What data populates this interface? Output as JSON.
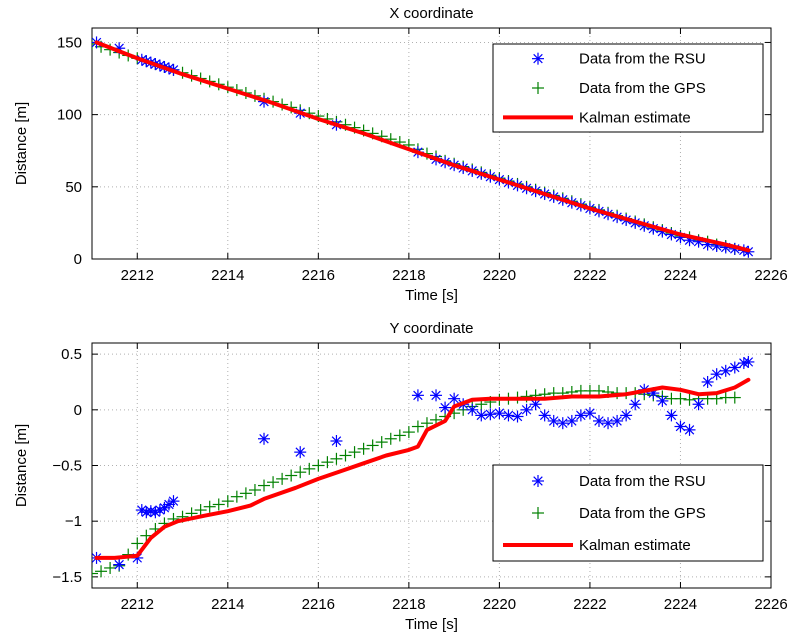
{
  "chart_data": [
    {
      "type": "line",
      "title": "X coordinate",
      "xlabel": "Time [s]",
      "ylabel": "Distance [m]",
      "xlim": [
        2211,
        2226
      ],
      "ylim": [
        0,
        160
      ],
      "xticks": [
        2212,
        2214,
        2216,
        2218,
        2220,
        2222,
        2224,
        2226
      ],
      "yticks": [
        0,
        50,
        100,
        150
      ],
      "grid": true,
      "legend_position": "top-right",
      "series": [
        {
          "name": "Data from the RSU",
          "marker": "asterisk",
          "color": "#0000ff",
          "x": [
            2211.1,
            2211.6,
            2212.1,
            2212.2,
            2212.3,
            2212.4,
            2212.5,
            2212.6,
            2212.7,
            2212.8,
            2214.8,
            2215.6,
            2216.4,
            2218.2,
            2218.6,
            2218.8,
            2219.0,
            2219.2,
            2219.4,
            2219.6,
            2219.8,
            2220.0,
            2220.2,
            2220.4,
            2220.6,
            2220.8,
            2221.0,
            2221.2,
            2221.4,
            2221.6,
            2221.8,
            2222.0,
            2222.2,
            2222.4,
            2222.6,
            2222.8,
            2223.0,
            2223.2,
            2223.4,
            2223.6,
            2223.8,
            2224.0,
            2224.2,
            2224.4,
            2224.6,
            2224.8,
            2225.0,
            2225.2,
            2225.4,
            2225.5
          ],
          "y": [
            150,
            146,
            138,
            137,
            136,
            135,
            134,
            133,
            132,
            131,
            109,
            101,
            93,
            74,
            69,
            67,
            65,
            63,
            61,
            59,
            57,
            55,
            53,
            51,
            49,
            47,
            45,
            43,
            41,
            39,
            37,
            35,
            33,
            31,
            29,
            27,
            25,
            23,
            21,
            19,
            17,
            15,
            13,
            12,
            10,
            9,
            8,
            7,
            6,
            5
          ]
        },
        {
          "name": "Data from the GPS",
          "marker": "plus",
          "color": "#008000",
          "x": [
            2211.0,
            2211.2,
            2211.4,
            2211.6,
            2211.8,
            2212.0,
            2212.2,
            2212.4,
            2212.6,
            2212.8,
            2213.0,
            2213.2,
            2213.4,
            2213.6,
            2213.8,
            2214.0,
            2214.2,
            2214.4,
            2214.6,
            2214.8,
            2215.0,
            2215.2,
            2215.4,
            2215.6,
            2215.8,
            2216.0,
            2216.2,
            2216.4,
            2216.6,
            2216.8,
            2217.0,
            2217.2,
            2217.4,
            2217.6,
            2217.8,
            2218.0,
            2218.2,
            2218.4,
            2218.6,
            2218.8,
            2219.0,
            2219.2,
            2219.4,
            2219.6,
            2219.8,
            2220.0,
            2220.2,
            2220.4,
            2220.6,
            2220.8,
            2221.0,
            2221.2,
            2221.4,
            2221.6,
            2221.8,
            2222.0,
            2222.2,
            2222.4,
            2222.6,
            2222.8,
            2223.0,
            2223.2,
            2223.4,
            2223.6,
            2223.8,
            2224.0,
            2224.2,
            2224.4,
            2224.6,
            2224.8,
            2225.0,
            2225.2
          ],
          "y": [
            149,
            147,
            145,
            143,
            141,
            139,
            137,
            135,
            133,
            131,
            129,
            127,
            125,
            123,
            121,
            119,
            117,
            115,
            113,
            111,
            109,
            107,
            105,
            103,
            101,
            99,
            97,
            95,
            93,
            91,
            89,
            87,
            85,
            83,
            81,
            79,
            76,
            73,
            71,
            68,
            66,
            64,
            62,
            60,
            58,
            56,
            54,
            52,
            50,
            48,
            46,
            44,
            42,
            40,
            38,
            36,
            34,
            32,
            30,
            28,
            26,
            24,
            22,
            20,
            18,
            16,
            15,
            13,
            12,
            10,
            9,
            7
          ]
        },
        {
          "name": "Kalman estimate",
          "marker": "line",
          "color": "#ff0000",
          "x": [
            2211.1,
            2212.0,
            2213.0,
            2214.0,
            2215.0,
            2216.0,
            2217.0,
            2218.0,
            2219.0,
            2220.0,
            2221.0,
            2222.0,
            2223.0,
            2224.0,
            2225.0,
            2225.5
          ],
          "y": [
            150,
            139,
            128,
            118,
            108,
            97,
            87,
            76,
            65,
            55,
            45,
            35,
            26,
            17,
            10,
            6
          ]
        }
      ]
    },
    {
      "type": "line",
      "title": "Y coordinate",
      "xlabel": "Time [s]",
      "ylabel": "Distance [m]",
      "xlim": [
        2211,
        2226
      ],
      "ylim": [
        -1.6,
        0.6
      ],
      "xticks": [
        2212,
        2214,
        2216,
        2218,
        2220,
        2222,
        2224,
        2226
      ],
      "yticks": [
        -1.5,
        -1,
        -0.5,
        0,
        0.5
      ],
      "ytick_labels": [
        "−1.5",
        "−1",
        "−0.5",
        "0",
        "0.5"
      ],
      "grid": true,
      "legend_position": "bottom-right",
      "series": [
        {
          "name": "Data from the RSU",
          "marker": "asterisk",
          "color": "#0000ff",
          "x": [
            2211.1,
            2211.6,
            2212.0,
            2212.1,
            2212.2,
            2212.3,
            2212.4,
            2212.5,
            2212.6,
            2212.7,
            2212.8,
            2214.8,
            2215.6,
            2216.4,
            2218.2,
            2218.6,
            2218.8,
            2219.0,
            2219.2,
            2219.4,
            2219.6,
            2219.8,
            2220.0,
            2220.2,
            2220.4,
            2220.6,
            2220.8,
            2221.0,
            2221.2,
            2221.4,
            2221.6,
            2221.8,
            2222.0,
            2222.2,
            2222.4,
            2222.6,
            2222.8,
            2223.0,
            2223.2,
            2223.4,
            2223.6,
            2223.8,
            2224.0,
            2224.2,
            2224.4,
            2224.6,
            2224.8,
            2225.0,
            2225.2,
            2225.4,
            2225.5
          ],
          "y": [
            -1.33,
            -1.39,
            -1.33,
            -0.9,
            -0.92,
            -0.91,
            -0.92,
            -0.9,
            -0.88,
            -0.85,
            -0.82,
            -0.26,
            -0.38,
            -0.28,
            0.13,
            0.13,
            0.02,
            0.1,
            0.05,
            0.0,
            -0.05,
            -0.04,
            -0.03,
            -0.05,
            -0.06,
            0.0,
            0.05,
            -0.05,
            -0.1,
            -0.12,
            -0.1,
            -0.05,
            -0.03,
            -0.1,
            -0.12,
            -0.1,
            -0.05,
            0.05,
            0.18,
            0.15,
            0.08,
            -0.05,
            -0.15,
            -0.18,
            0.05,
            0.25,
            0.32,
            0.35,
            0.38,
            0.42,
            0.43
          ]
        },
        {
          "name": "Data from the GPS",
          "marker": "plus",
          "color": "#008000",
          "x": [
            2211.0,
            2211.2,
            2211.4,
            2211.6,
            2211.8,
            2212.0,
            2212.2,
            2212.4,
            2212.6,
            2212.8,
            2213.0,
            2213.2,
            2213.4,
            2213.6,
            2213.8,
            2214.0,
            2214.2,
            2214.4,
            2214.6,
            2214.8,
            2215.0,
            2215.2,
            2215.4,
            2215.6,
            2215.8,
            2216.0,
            2216.2,
            2216.4,
            2216.6,
            2216.8,
            2217.0,
            2217.2,
            2217.4,
            2217.6,
            2217.8,
            2218.0,
            2218.2,
            2218.4,
            2218.6,
            2218.8,
            2219.0,
            2219.2,
            2219.4,
            2219.6,
            2219.8,
            2220.0,
            2220.2,
            2220.4,
            2220.6,
            2220.8,
            2221.0,
            2221.2,
            2221.4,
            2221.6,
            2221.8,
            2222.0,
            2222.2,
            2222.4,
            2222.6,
            2222.8,
            2223.0,
            2223.2,
            2223.4,
            2223.6,
            2223.8,
            2224.0,
            2224.2,
            2224.4,
            2224.6,
            2224.8,
            2225.0,
            2225.2
          ],
          "y": [
            -1.47,
            -1.45,
            -1.42,
            -1.4,
            -1.3,
            -1.2,
            -1.13,
            -1.07,
            -1.02,
            -0.98,
            -0.96,
            -0.93,
            -0.9,
            -0.87,
            -0.85,
            -0.82,
            -0.78,
            -0.75,
            -0.72,
            -0.68,
            -0.65,
            -0.62,
            -0.59,
            -0.56,
            -0.53,
            -0.5,
            -0.47,
            -0.44,
            -0.41,
            -0.38,
            -0.35,
            -0.32,
            -0.29,
            -0.26,
            -0.23,
            -0.2,
            -0.15,
            -0.12,
            -0.09,
            -0.06,
            -0.03,
            0.0,
            0.03,
            0.05,
            0.07,
            0.09,
            0.1,
            0.11,
            0.12,
            0.13,
            0.14,
            0.15,
            0.15,
            0.16,
            0.17,
            0.17,
            0.17,
            0.16,
            0.15,
            0.15,
            0.15,
            0.14,
            0.13,
            0.12,
            0.1,
            0.1,
            0.09,
            0.1,
            0.1,
            0.1,
            0.11,
            0.11
          ]
        },
        {
          "name": "Kalman estimate",
          "marker": "line",
          "color": "#ff0000",
          "x": [
            2211.1,
            2211.5,
            2212.0,
            2212.3,
            2212.6,
            2212.9,
            2213.5,
            2214.0,
            2214.5,
            2214.8,
            2215.5,
            2216.0,
            2216.5,
            2217.0,
            2217.5,
            2218.0,
            2218.2,
            2218.4,
            2218.8,
            2219.0,
            2219.4,
            2219.8,
            2220.4,
            2221.0,
            2221.6,
            2222.2,
            2222.8,
            2223.2,
            2223.6,
            2224.0,
            2224.4,
            2224.8,
            2225.2,
            2225.5
          ],
          "y": [
            -1.33,
            -1.33,
            -1.31,
            -1.15,
            -1.05,
            -1.0,
            -0.95,
            -0.91,
            -0.86,
            -0.8,
            -0.7,
            -0.62,
            -0.55,
            -0.48,
            -0.41,
            -0.36,
            -0.33,
            -0.18,
            -0.1,
            0.03,
            0.09,
            0.1,
            0.1,
            0.1,
            0.12,
            0.12,
            0.14,
            0.17,
            0.2,
            0.18,
            0.14,
            0.15,
            0.2,
            0.27
          ]
        }
      ]
    }
  ]
}
